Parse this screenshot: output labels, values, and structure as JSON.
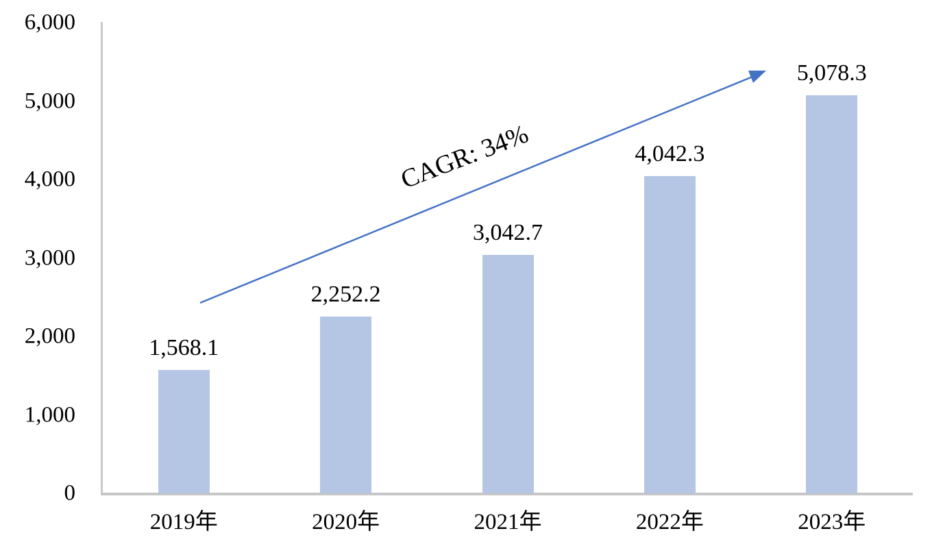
{
  "chart_data": {
    "type": "bar",
    "title": "",
    "xlabel": "",
    "ylabel": "",
    "categories": [
      "2019年",
      "2020年",
      "2021年",
      "2022年",
      "2023年"
    ],
    "values": [
      1568.1,
      2252.2,
      3042.7,
      4042.3,
      5078.3
    ],
    "value_labels": [
      "1,568.1",
      "2,252.2",
      "3,042.7",
      "4,042.3",
      "5,078.3"
    ],
    "y_ticks": [
      "6,000",
      "5,000",
      "4,000",
      "3,000",
      "2,000",
      "1,000",
      "0"
    ],
    "y_tick_values": [
      6000,
      5000,
      4000,
      3000,
      2000,
      1000,
      0
    ],
    "ylim": [
      0,
      6000
    ],
    "grid": false,
    "legend_position": "none",
    "annotation": {
      "label": "CAGR: 34%"
    },
    "colors": {
      "bar_fill": "#B5C6E5",
      "arrow": "#4472C4",
      "axis_line": "#C7C7C7",
      "text": "#000000"
    }
  }
}
